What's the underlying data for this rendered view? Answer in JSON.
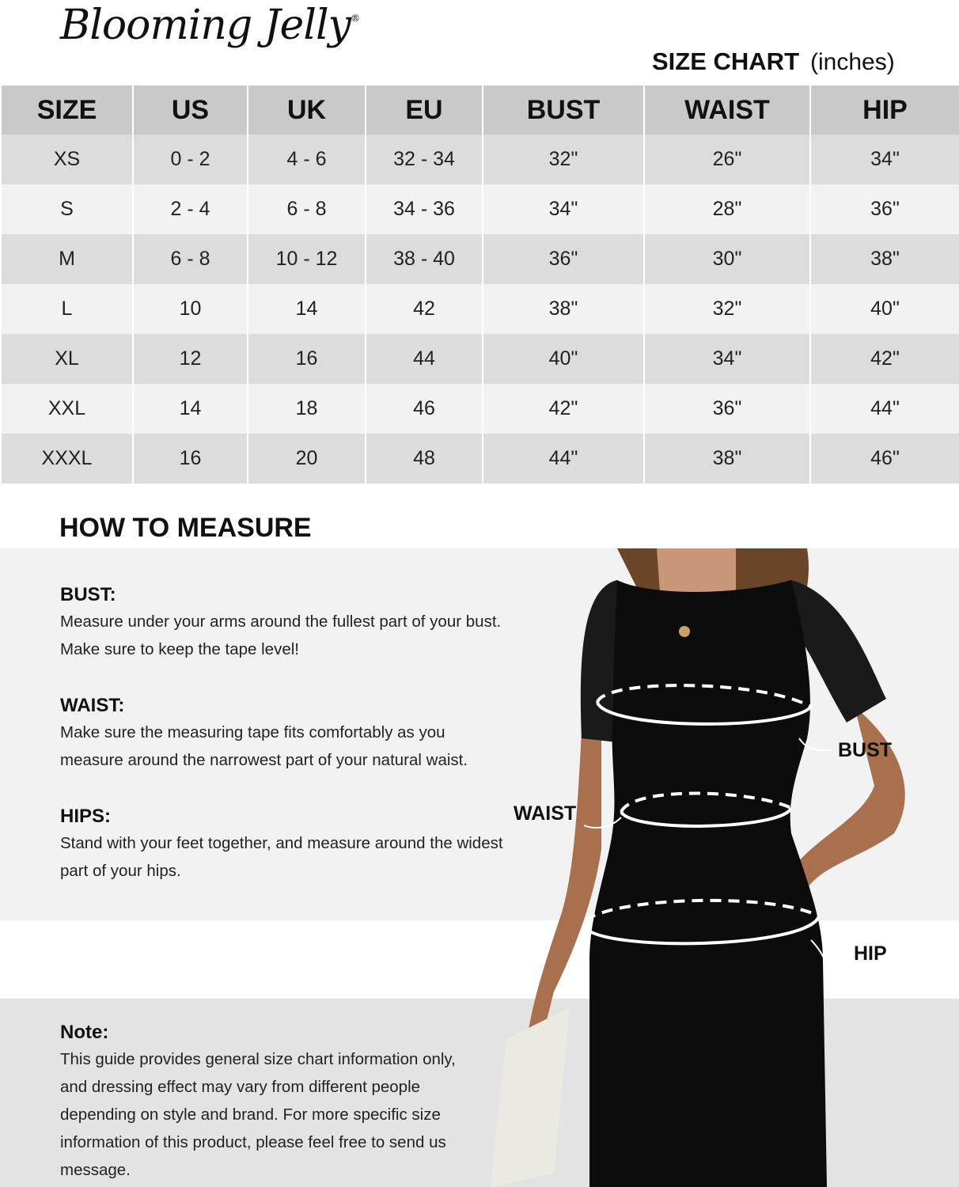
{
  "brand": {
    "logo_text": "Blooming Jelly",
    "registered": "®"
  },
  "size_chart": {
    "title": "SIZE CHART",
    "unit": "(inches)",
    "headers": [
      "SIZE",
      "US",
      "UK",
      "EU",
      "BUST",
      "WAIST",
      "HIP"
    ],
    "rows": [
      [
        "XS",
        "0 - 2",
        "4 - 6",
        "32 - 34",
        "32\"",
        "26\"",
        "34\""
      ],
      [
        "S",
        "2 - 4",
        "6 - 8",
        "34 - 36",
        "34\"",
        "28\"",
        "36\""
      ],
      [
        "M",
        "6 - 8",
        "10 - 12",
        "38 - 40",
        "36\"",
        "30\"",
        "38\""
      ],
      [
        "L",
        "10",
        "14",
        "42",
        "38\"",
        "32\"",
        "40\""
      ],
      [
        "XL",
        "12",
        "16",
        "44",
        "40\"",
        "34\"",
        "42\""
      ],
      [
        "XXL",
        "14",
        "18",
        "46",
        "42\"",
        "36\"",
        "44\""
      ],
      [
        "XXXL",
        "16",
        "20",
        "48",
        "44\"",
        "38\"",
        "46\""
      ]
    ]
  },
  "how_to_measure": {
    "title": "HOW TO MEASURE",
    "sections": [
      {
        "heading": "BUST:",
        "lines": [
          "Measure under your arms around the fullest part of your bust.",
          "Make sure to keep the tape level!"
        ]
      },
      {
        "heading": "WAIST:",
        "lines": [
          "Make sure the measuring tape fits comfortably as you",
          "measure around the narrowest part of your natural waist."
        ]
      },
      {
        "heading": "HIPS:",
        "lines": [
          "Stand with your feet together, and measure around the widest",
          "part of your hips."
        ]
      }
    ],
    "figure_labels": {
      "bust": "BUST",
      "waist": "WAIST",
      "hip": "HIP"
    }
  },
  "note": {
    "heading": "Note:",
    "lines": [
      "This guide provides general size chart information only,",
      "and dressing effect may vary from different people",
      "depending on style and brand. For more specific size",
      "information of this product, please feel free to send us",
      "message."
    ]
  },
  "colors": {
    "header_bg": "#c9c9c9",
    "row_dark": "#dcdcdc",
    "row_light": "#f2f2f2",
    "dress": "#0c0c0c"
  }
}
